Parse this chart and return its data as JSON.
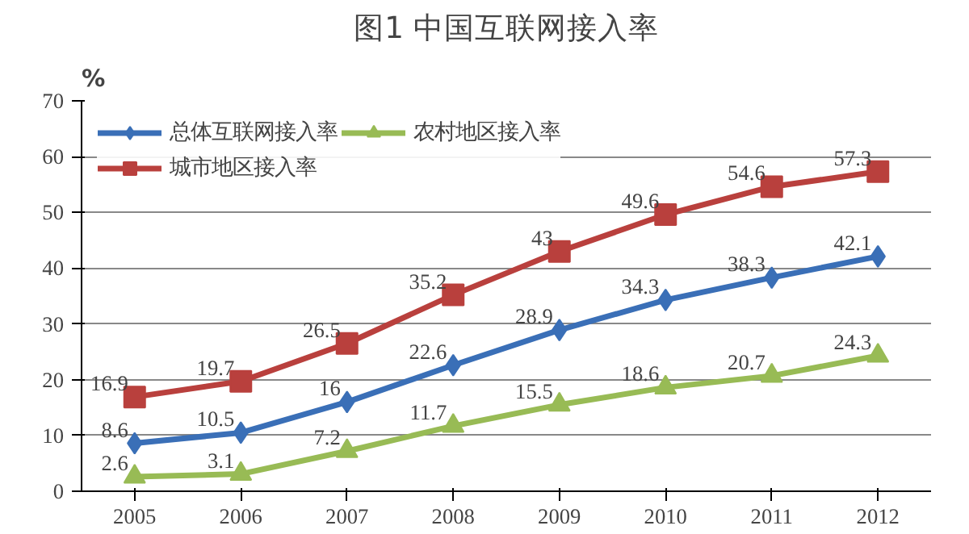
{
  "chart_data": {
    "type": "line",
    "title": "图1 中国互联网接入率",
    "ylabel": "%",
    "categories": [
      "2005",
      "2006",
      "2007",
      "2008",
      "2009",
      "2010",
      "2011",
      "2012"
    ],
    "series": [
      {
        "name": "总体互联网接入率",
        "color": "#3a6fb7",
        "marker": "diamond",
        "values": [
          8.6,
          10.5,
          16,
          22.6,
          28.9,
          34.3,
          38.3,
          42.1
        ]
      },
      {
        "name": "城市地区接入率",
        "color": "#b9403d",
        "marker": "square",
        "values": [
          16.9,
          19.7,
          26.5,
          35.2,
          43,
          49.6,
          54.6,
          57.3
        ]
      },
      {
        "name": "农村地区接入率",
        "color": "#98bb55",
        "marker": "triangle",
        "values": [
          2.6,
          3.1,
          7.2,
          11.7,
          15.5,
          18.6,
          20.7,
          24.3
        ]
      }
    ],
    "ylim": [
      0,
      70
    ],
    "yticks": [
      0,
      10,
      20,
      30,
      40,
      50,
      60,
      70
    ],
    "grid": "y",
    "legend": "top left",
    "data_labels": true,
    "line_style": "solid"
  }
}
